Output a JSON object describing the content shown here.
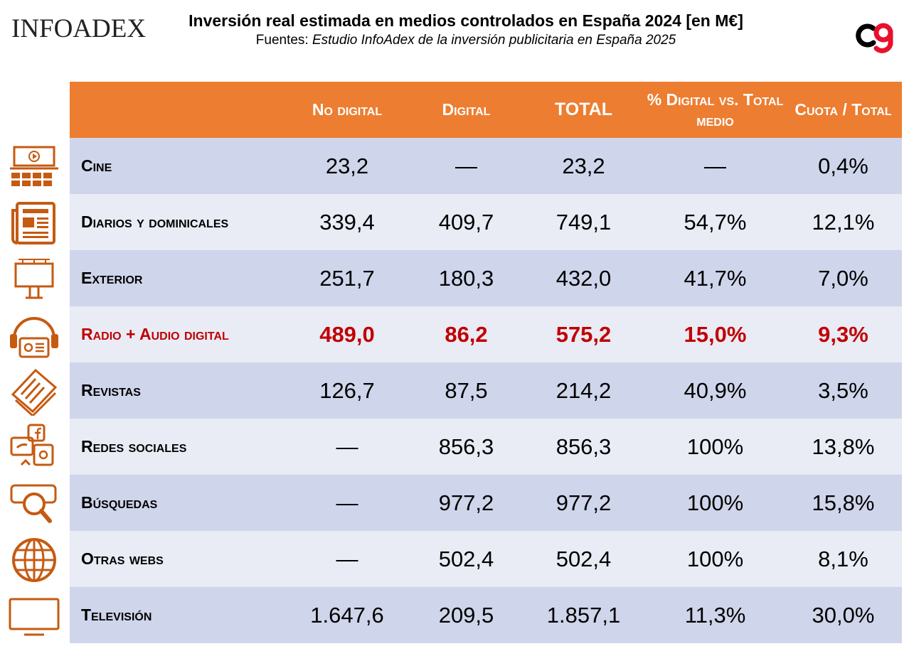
{
  "header": {
    "logo_left": "INFOADEX",
    "title": "Inversión real estimada en medios controlados en España 2024 [en M€]",
    "subtitle_prefix": "Fuentes: ",
    "subtitle_source": "Estudio InfoAdex de la inversión publicitaria en España 2025"
  },
  "colors": {
    "header_bg": "#ED7D31",
    "row_odd": "#CFD5EA",
    "row_even": "#E9EBF5",
    "highlight": "#C00000",
    "icon": "#C55A11",
    "logo_right_red": "#E8112D"
  },
  "chart_data": {
    "type": "table",
    "title": "Inversión real estimada en medios controlados en España 2024 [en M€]",
    "columns": [
      "",
      "No digital",
      "Digital",
      "TOTAL",
      "% Digital vs. Total medio",
      "Cuota / Total"
    ],
    "highlight_row": 3,
    "rows": [
      {
        "icon": "cinema-icon",
        "name": "Cine",
        "no_digital": "23,2",
        "digital": "—",
        "total": "23,2",
        "pct_digital": "—",
        "cuota": "0,4%"
      },
      {
        "icon": "newspaper-icon",
        "name": "Diarios y dominicales",
        "no_digital": "339,4",
        "digital": "409,7",
        "total": "749,1",
        "pct_digital": "54,7%",
        "cuota": "12,1%"
      },
      {
        "icon": "billboard-icon",
        "name": "Exterior",
        "no_digital": "251,7",
        "digital": "180,3",
        "total": "432,0",
        "pct_digital": "41,7%",
        "cuota": "7,0%"
      },
      {
        "icon": "radio-headphones-icon",
        "name": "Radio + Audio digital",
        "no_digital": "489,0",
        "digital": "86,2",
        "total": "575,2",
        "pct_digital": "15,0%",
        "cuota": "9,3%"
      },
      {
        "icon": "magazine-icon",
        "name": "Revistas",
        "no_digital": "126,7",
        "digital": "87,5",
        "total": "214,2",
        "pct_digital": "40,9%",
        "cuota": "3,5%"
      },
      {
        "icon": "social-media-icon",
        "name": "Redes sociales",
        "no_digital": "—",
        "digital": "856,3",
        "total": "856,3",
        "pct_digital": "100%",
        "cuota": "13,8%"
      },
      {
        "icon": "search-icon",
        "name": "Búsquedas",
        "no_digital": "—",
        "digital": "977,2",
        "total": "977,2",
        "pct_digital": "100%",
        "cuota": "15,8%"
      },
      {
        "icon": "globe-icon",
        "name": "Otras webs",
        "no_digital": "—",
        "digital": "502,4",
        "total": "502,4",
        "pct_digital": "100%",
        "cuota": "8,1%"
      },
      {
        "icon": "tv-icon",
        "name": "Televisión",
        "no_digital": "1.647,6",
        "digital": "209,5",
        "total": "1.857,1",
        "pct_digital": "11,3%",
        "cuota": "30,0%"
      }
    ]
  }
}
